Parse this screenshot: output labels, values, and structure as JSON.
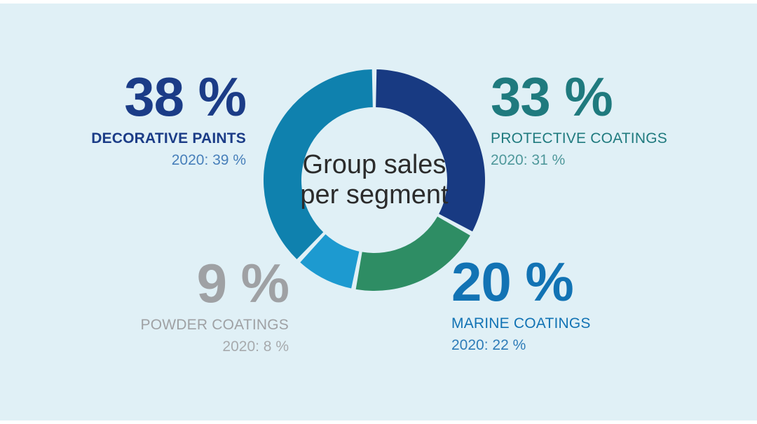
{
  "page": {
    "background_color": "#e0f0f6",
    "frame_color": "#ffffff"
  },
  "chart_data": {
    "type": "pie",
    "variant": "donut",
    "title": "Group sales per segment",
    "center_label_lines": [
      "Group sales",
      "per segment"
    ],
    "center_text_color": "#2b2b2b",
    "start_angle_deg": 0,
    "direction": "clockwise",
    "gap_deg": 2.4,
    "outer_radius_px": 158,
    "inner_radius_px": 104,
    "legend_position": "around-chart",
    "segments": [
      {
        "id": "protective",
        "label": "PROTECTIVE COATINGS",
        "value_pct": 33,
        "value_display": "33 %",
        "prev_year_display": "2020: 31 %",
        "slice_color": "#183a82",
        "text_color": "#1f7a7e",
        "subtext_color": "#4f989b",
        "label_position": "top-right"
      },
      {
        "id": "marine",
        "label": "MARINE COATINGS",
        "value_pct": 20,
        "value_display": "20 %",
        "prev_year_display": "2020: 22 %",
        "slice_color": "#2e8d64",
        "text_color": "#1273b4",
        "subtext_color": "#2e7cb8",
        "label_position": "bottom-right"
      },
      {
        "id": "powder",
        "label": "POWDER COATINGS",
        "value_pct": 9,
        "value_display": "9 %",
        "prev_year_display": "2020: 8 %",
        "slice_color": "#1d9ad0",
        "text_color": "#9fa1a4",
        "subtext_color": "#a7aaad",
        "label_position": "bottom-left"
      },
      {
        "id": "decorative",
        "label": "DECORATIVE PAINTS",
        "value_pct": 38,
        "value_display": "38 %",
        "prev_year_display": "2020: 39 %",
        "slice_color": "#0f81ae",
        "text_color": "#1b3c87",
        "subtext_color": "#477fba",
        "label_position": "top-left"
      }
    ]
  }
}
